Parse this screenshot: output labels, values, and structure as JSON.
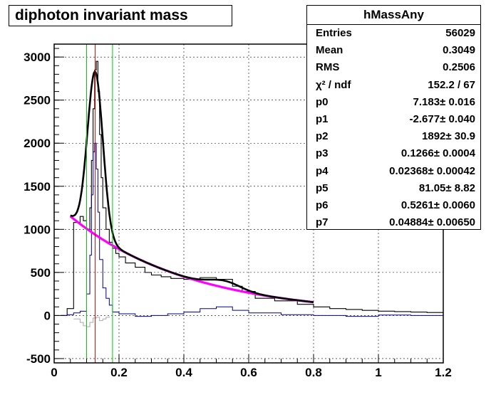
{
  "title": "diphoton invariant mass",
  "stats": {
    "name": "hMassAny",
    "rows": [
      {
        "label": "Entries",
        "value": "56029"
      },
      {
        "label": "Mean",
        "value": "0.3049"
      },
      {
        "label": "RMS",
        "value": "0.2506"
      },
      {
        "label": "χ² / ndf",
        "value": "152.2 / 67"
      },
      {
        "label": "p0",
        "value": "7.183± 0.016"
      },
      {
        "label": "p1",
        "value": "-2.677± 0.040"
      },
      {
        "label": "p2",
        "value": "1892± 30.9"
      },
      {
        "label": "p3",
        "value": "0.1266± 0.0004"
      },
      {
        "label": "p4",
        "value": "0.02368± 0.00042"
      },
      {
        "label": "p5",
        "value": "81.05± 8.82"
      },
      {
        "label": "p6",
        "value": "0.5261± 0.0060"
      },
      {
        "label": "p7",
        "value": "0.04884± 0.00650"
      }
    ]
  },
  "colors": {
    "data": "#000000",
    "fit": "#000000",
    "background_fit": "#ff00ff",
    "subtracted": "#00008b",
    "residual": "#aaaaaa",
    "window_lines": "#00cc00",
    "peak_line": "#cc0000",
    "grid": "#000000"
  },
  "chart_data": {
    "type": "line",
    "xlim": [
      0,
      1.2
    ],
    "ylim": [
      -550,
      3150
    ],
    "xticks": [
      "0",
      "0.2",
      "0.4",
      "0.6",
      "0.8",
      "1",
      "1.2"
    ],
    "yticks": [
      "-500",
      "0",
      "500",
      "1000",
      "1500",
      "2000",
      "2500",
      "3000"
    ],
    "grid": true,
    "vertical_lines": {
      "green": [
        0.1,
        0.18
      ],
      "red": [
        0.1266
      ]
    },
    "series": [
      {
        "key": "data",
        "kind": "histogram",
        "x": [
          0.02,
          0.04,
          0.06,
          0.08,
          0.09,
          0.1,
          0.11,
          0.115,
          0.12,
          0.125,
          0.13,
          0.135,
          0.14,
          0.145,
          0.15,
          0.16,
          0.17,
          0.18,
          0.19,
          0.2,
          0.22,
          0.25,
          0.28,
          0.3,
          0.33,
          0.36,
          0.4,
          0.45,
          0.5,
          0.55,
          0.58,
          0.62,
          0.68,
          0.75,
          0.8,
          0.85,
          0.9,
          0.95,
          1.0,
          1.05,
          1.1,
          1.15,
          1.2
        ],
        "y": [
          0,
          80,
          1080,
          1150,
          1100,
          1000,
          1250,
          1800,
          2400,
          2850,
          2950,
          2600,
          2100,
          1600,
          1250,
          1000,
          850,
          780,
          720,
          680,
          610,
          560,
          500,
          470,
          450,
          430,
          420,
          440,
          420,
          340,
          280,
          200,
          170,
          130,
          100,
          80,
          70,
          60,
          50,
          45,
          40,
          35,
          30
        ]
      },
      {
        "key": "subtracted",
        "kind": "histogram",
        "x": [
          0.02,
          0.04,
          0.06,
          0.08,
          0.1,
          0.11,
          0.115,
          0.12,
          0.125,
          0.13,
          0.135,
          0.14,
          0.15,
          0.16,
          0.17,
          0.18,
          0.2,
          0.25,
          0.3,
          0.35,
          0.4,
          0.45,
          0.5,
          0.55,
          0.6,
          0.7,
          0.8,
          0.9,
          1.0,
          1.1,
          1.2
        ],
        "y": [
          0,
          10,
          30,
          50,
          250,
          700,
          1400,
          1900,
          2000,
          1700,
          1200,
          650,
          320,
          200,
          120,
          40,
          20,
          -10,
          0,
          20,
          40,
          80,
          100,
          60,
          30,
          10,
          0,
          -10,
          5,
          0,
          -5
        ]
      },
      {
        "key": "residual",
        "kind": "histogram",
        "x": [
          0.06,
          0.08,
          0.09,
          0.1,
          0.11,
          0.12,
          0.13,
          0.14,
          0.15,
          0.16,
          0.17
        ],
        "y": [
          -40,
          -80,
          -120,
          -130,
          -80,
          -30,
          -20,
          -60,
          -40,
          -20,
          -10
        ]
      }
    ],
    "fit": {
      "p0": 7.183,
      "p1": -2.677,
      "p2": 1892,
      "p3": 0.1266,
      "p4": 0.02368,
      "p5": 81.05,
      "p6": 0.5261,
      "p7": 0.04884,
      "xmin": 0.05,
      "xmax": 0.8
    }
  }
}
